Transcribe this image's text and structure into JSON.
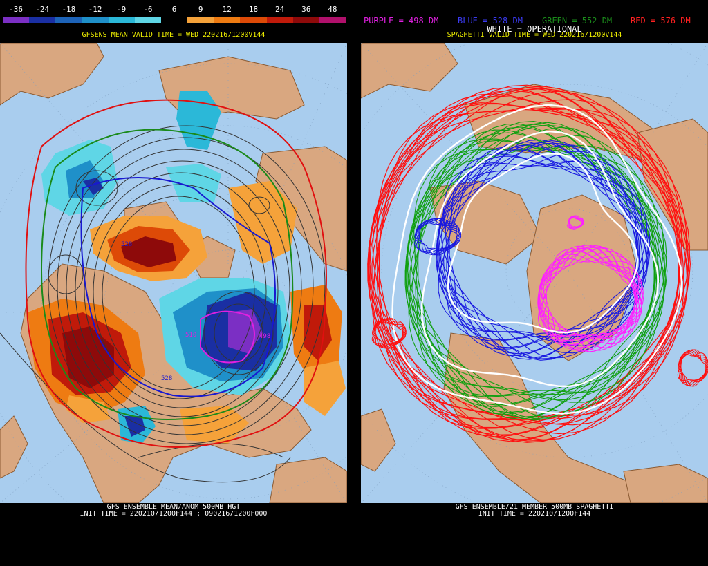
{
  "left_panel": {
    "colorbar": {
      "ticks": [
        "-36",
        "-24",
        "-18",
        "-12",
        "-9",
        "-6",
        "6",
        "9",
        "12",
        "18",
        "24",
        "36",
        "48"
      ],
      "colors": [
        "#7b2fc4",
        "#1a2fa3",
        "#1d63b8",
        "#1f90c9",
        "#2bb8d8",
        "#5fd6e6",
        "#000000",
        "#f5a23a",
        "#ee7b12",
        "#dd4a07",
        "#c01a0a",
        "#8e0a0a",
        "#b0106b"
      ]
    },
    "title": "GFSENS MEAN VALID TIME = WED 220216/1200V144",
    "footer_line1": "GFS ENSEMBLE MEAN/ANOM 500MB HGT",
    "footer_line2": "INIT TIME = 220210/1200F144 : 090216/1200F000"
  },
  "right_panel": {
    "legend": {
      "purple": "PURPLE = 498 DM",
      "blue": "BLUE = 528 DM",
      "green": "GREEN = 552 DM",
      "red": "RED = 576 DM",
      "white": "WHITE = OPERATIONAL"
    },
    "title": "SPAGHETTI VALID TIME = WED 220216/1200V144",
    "footer_line1": "GFS ENSEMBLE/21 MEMBER 500MB SPAGHETTI",
    "footer_line2": "INIT TIME = 220210/1200F144"
  },
  "map_colors": {
    "ocean": "#a9cdee",
    "land": "#d9a780",
    "coast": "#8a5a32"
  }
}
